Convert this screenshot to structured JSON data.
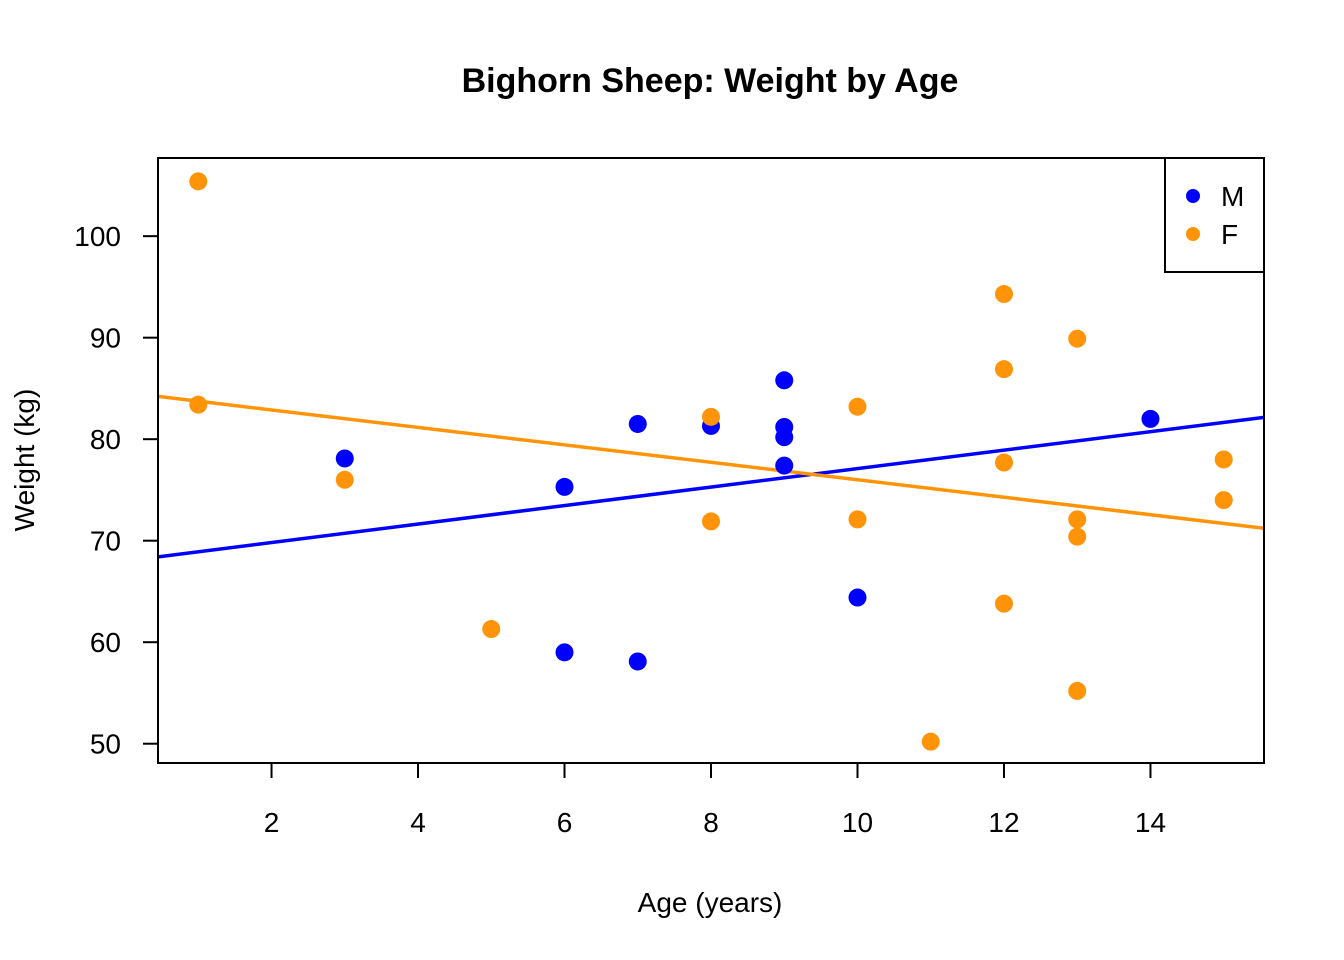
{
  "chart_data": {
    "type": "scatter",
    "title": "Bighorn Sheep: Weight by Age",
    "xlabel": "Age (years)",
    "ylabel": "Weight (kg)",
    "xlim": [
      0.45,
      15.55
    ],
    "ylim": [
      48.1,
      107.7
    ],
    "xticks": [
      2,
      4,
      6,
      8,
      10,
      12,
      14
    ],
    "yticks": [
      50,
      60,
      70,
      80,
      90,
      100
    ],
    "grid": false,
    "legend_position": "top-right",
    "series": [
      {
        "name": "M",
        "color": "#0000ff",
        "points": [
          {
            "x": 3,
            "y": 78.1
          },
          {
            "x": 6,
            "y": 75.3
          },
          {
            "x": 6,
            "y": 59.0
          },
          {
            "x": 7,
            "y": 81.5
          },
          {
            "x": 7,
            "y": 58.1
          },
          {
            "x": 8,
            "y": 81.3
          },
          {
            "x": 9,
            "y": 85.8
          },
          {
            "x": 9,
            "y": 81.2
          },
          {
            "x": 9,
            "y": 80.2
          },
          {
            "x": 9,
            "y": 77.4
          },
          {
            "x": 10,
            "y": 64.4
          },
          {
            "x": 14,
            "y": 82.0
          }
        ],
        "trend": {
          "intercept": 68.0,
          "slope": 0.91
        }
      },
      {
        "name": "F",
        "color": "#ff9408",
        "points": [
          {
            "x": 1,
            "y": 105.4
          },
          {
            "x": 1,
            "y": 83.4
          },
          {
            "x": 3,
            "y": 76.0
          },
          {
            "x": 5,
            "y": 61.3
          },
          {
            "x": 8,
            "y": 82.2
          },
          {
            "x": 8,
            "y": 71.9
          },
          {
            "x": 10,
            "y": 83.2
          },
          {
            "x": 10,
            "y": 72.1
          },
          {
            "x": 11,
            "y": 50.2
          },
          {
            "x": 12,
            "y": 94.3
          },
          {
            "x": 12,
            "y": 86.9
          },
          {
            "x": 12,
            "y": 77.7
          },
          {
            "x": 12,
            "y": 63.8
          },
          {
            "x": 13,
            "y": 89.9
          },
          {
            "x": 13,
            "y": 72.1
          },
          {
            "x": 13,
            "y": 70.4
          },
          {
            "x": 13,
            "y": 55.2
          },
          {
            "x": 15,
            "y": 78.0
          },
          {
            "x": 15,
            "y": 74.0
          }
        ],
        "trend": {
          "intercept": 84.6,
          "slope": -0.86
        }
      }
    ]
  }
}
